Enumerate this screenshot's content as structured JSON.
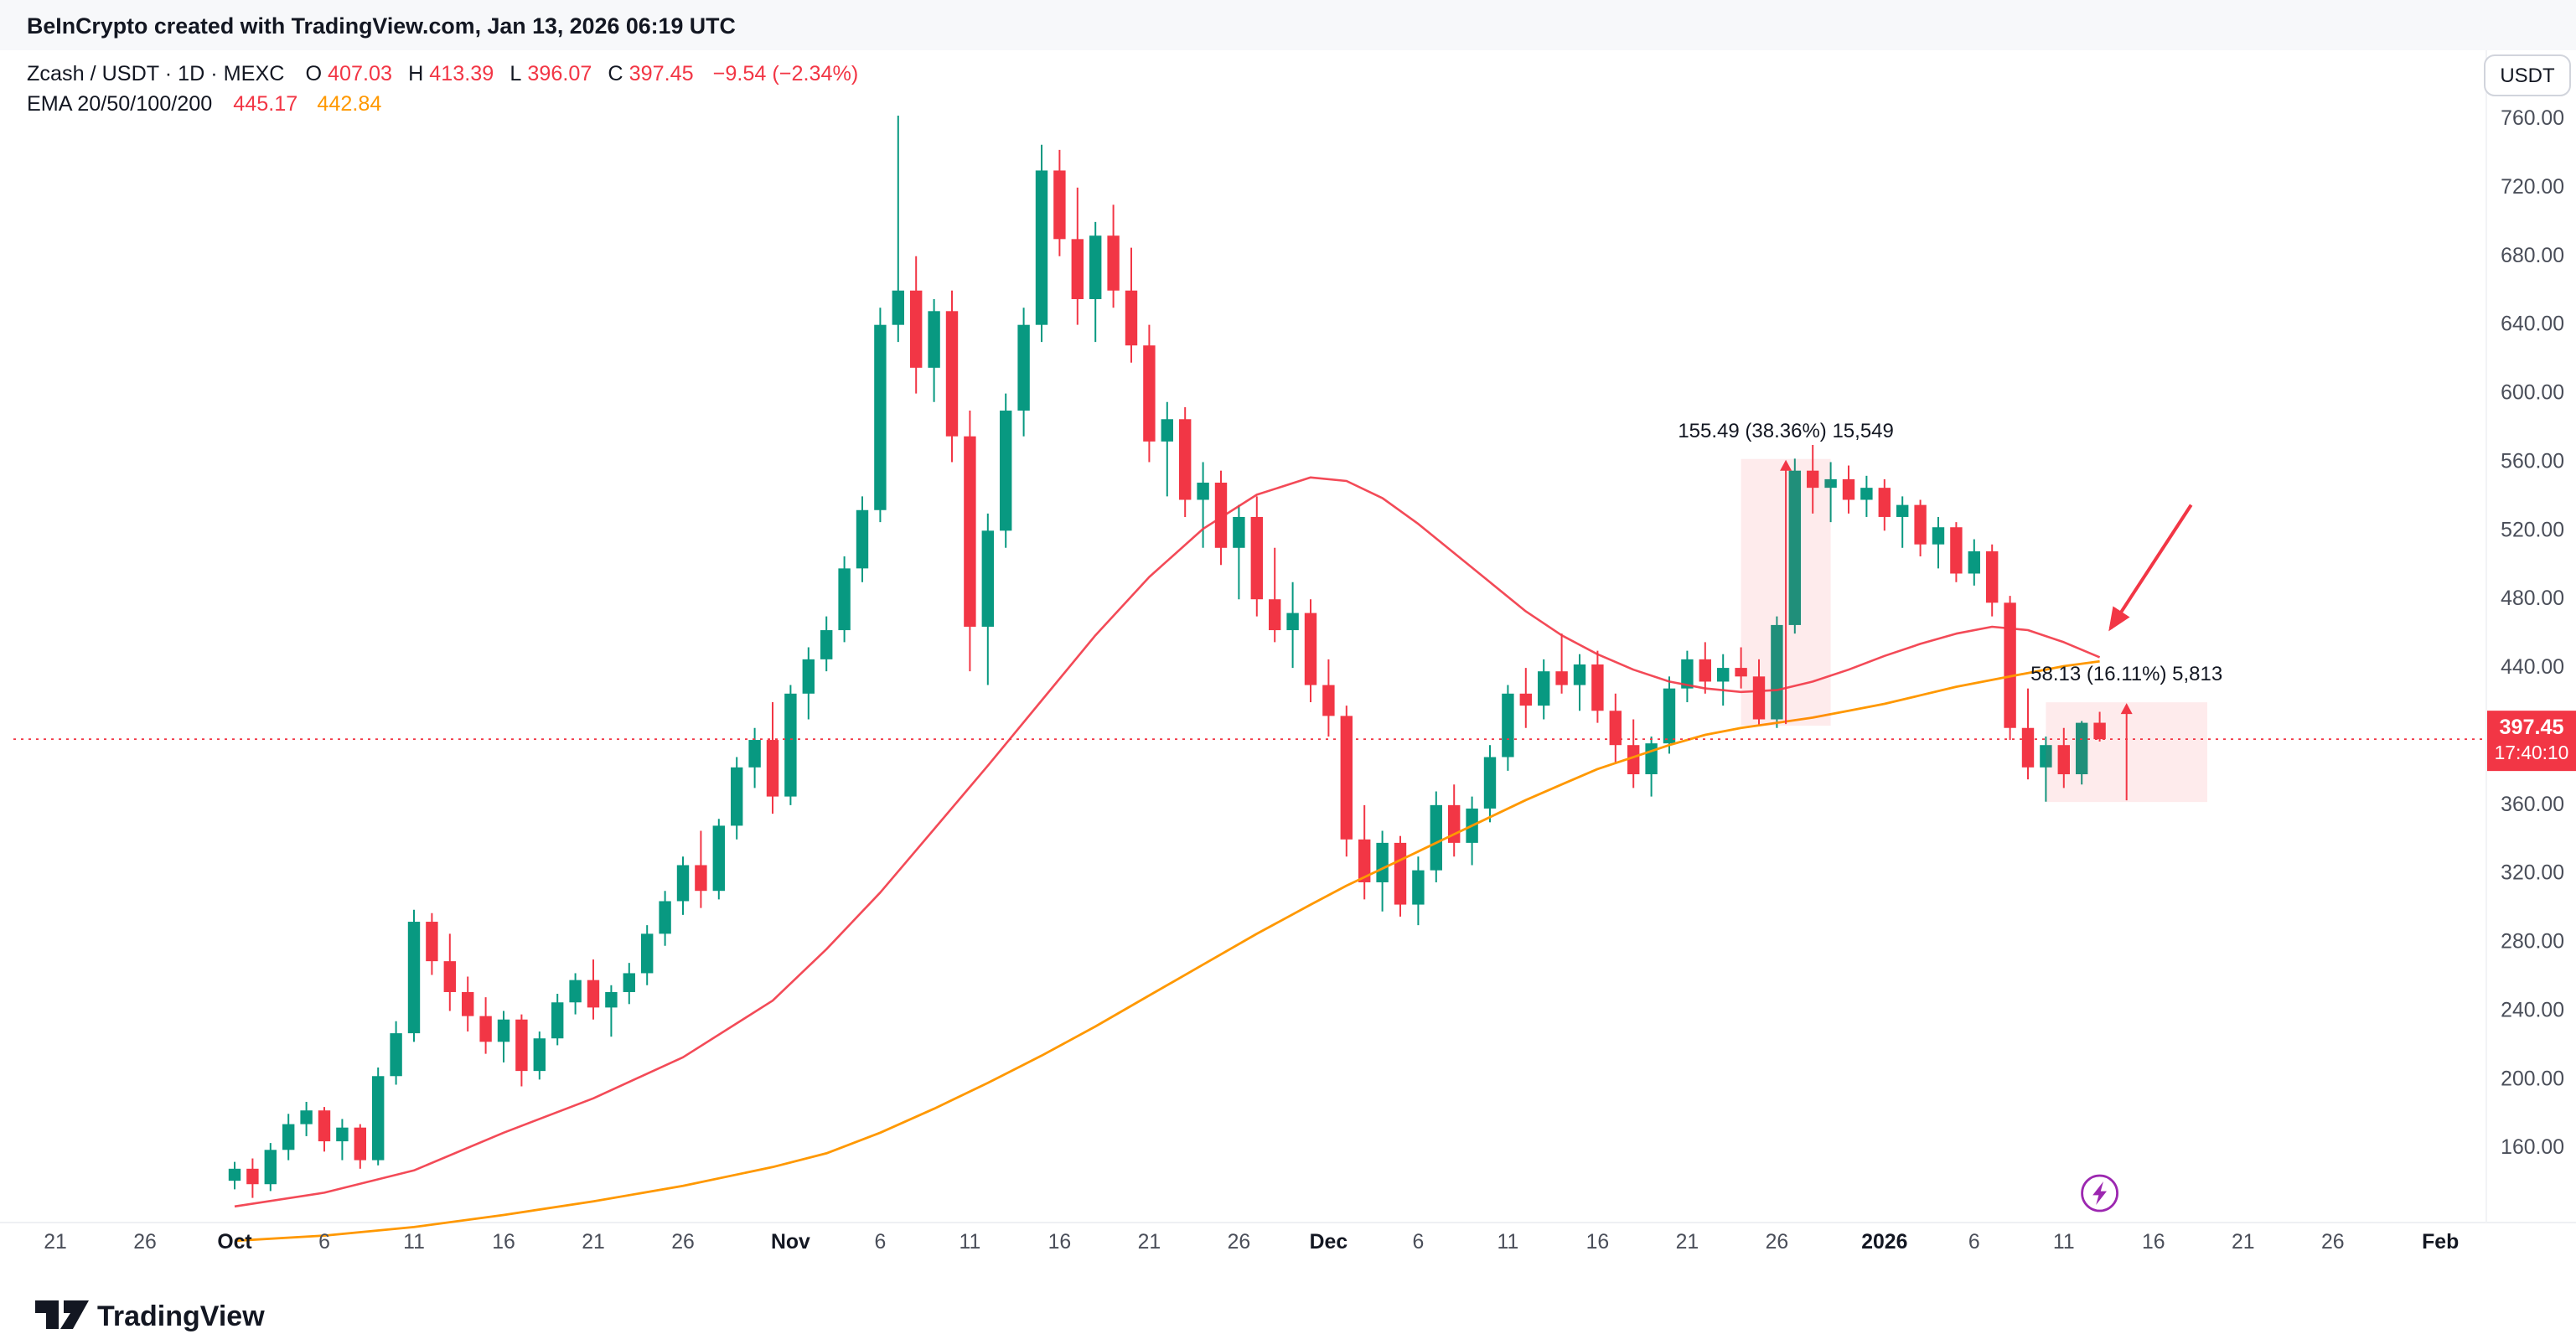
{
  "attribution": "BeInCrypto created with TradingView.com, Jan 13, 2026 06:19 UTC",
  "legend": {
    "symbol": "Zcash / USDT · 1D · MEXC",
    "ohlc": {
      "o_label": "O",
      "o": "407.03",
      "h_label": "H",
      "h": "413.39",
      "l_label": "L",
      "l": "396.07",
      "c_label": "C",
      "c": "397.45",
      "change": "−9.54 (−2.34%)"
    },
    "ema": {
      "label": "EMA 20/50/100/200",
      "red_value": "445.17",
      "orange_value": "442.84"
    }
  },
  "price_axis": {
    "currency_button": "USDT",
    "ticks": [
      "760.00",
      "720.00",
      "680.00",
      "640.00",
      "600.00",
      "560.00",
      "520.00",
      "480.00",
      "440.00",
      "400.00",
      "360.00",
      "320.00",
      "280.00",
      "240.00",
      "200.00",
      "160.00"
    ],
    "last_price_label": {
      "price": "397.45",
      "countdown": "17:40:10"
    }
  },
  "time_axis": {
    "labels": [
      {
        "t": "21",
        "i": -10,
        "strong": false
      },
      {
        "t": "26",
        "i": -5,
        "strong": false
      },
      {
        "t": "Oct",
        "i": 0,
        "strong": true
      },
      {
        "t": "6",
        "i": 5,
        "strong": false
      },
      {
        "t": "11",
        "i": 10,
        "strong": false
      },
      {
        "t": "16",
        "i": 15,
        "strong": false
      },
      {
        "t": "21",
        "i": 20,
        "strong": false
      },
      {
        "t": "26",
        "i": 25,
        "strong": false
      },
      {
        "t": "Nov",
        "i": 31,
        "strong": true
      },
      {
        "t": "6",
        "i": 36,
        "strong": false
      },
      {
        "t": "11",
        "i": 41,
        "strong": false
      },
      {
        "t": "16",
        "i": 46,
        "strong": false
      },
      {
        "t": "21",
        "i": 51,
        "strong": false
      },
      {
        "t": "26",
        "i": 56,
        "strong": false
      },
      {
        "t": "Dec",
        "i": 61,
        "strong": true
      },
      {
        "t": "6",
        "i": 66,
        "strong": false
      },
      {
        "t": "11",
        "i": 71,
        "strong": false
      },
      {
        "t": "16",
        "i": 76,
        "strong": false
      },
      {
        "t": "21",
        "i": 81,
        "strong": false
      },
      {
        "t": "26",
        "i": 86,
        "strong": false
      },
      {
        "t": "2026",
        "i": 92,
        "strong": true
      },
      {
        "t": "6",
        "i": 97,
        "strong": false
      },
      {
        "t": "11",
        "i": 102,
        "strong": false
      },
      {
        "t": "16",
        "i": 107,
        "strong": false
      },
      {
        "t": "21",
        "i": 112,
        "strong": false
      },
      {
        "t": "26",
        "i": 117,
        "strong": false
      },
      {
        "t": "Feb",
        "i": 123,
        "strong": true
      }
    ]
  },
  "footer": {
    "brand": "TradingView"
  },
  "colors": {
    "up": "#089981",
    "down": "#f23645",
    "ema_red": "#f23645",
    "ema_orange": "#ff9800",
    "last_price_bg": "#f23645",
    "accent_purple": "#9c27b0",
    "annotation_fill": "rgba(242,54,69,0.10)",
    "annotation_line": "#f23645",
    "topbar_bg": "#f7f8fa"
  },
  "chart_data": {
    "type": "candlestick",
    "title": "Zcash / USDT · 1D · MEXC",
    "ylabel": "USDT",
    "interval": "1D",
    "exchange": "MEXC",
    "last_price": 397.45,
    "y_axis": {
      "min": 160,
      "max": 760,
      "step": 40
    },
    "candles_format": [
      "date",
      "open",
      "high",
      "low",
      "close"
    ],
    "candles": [
      [
        "Oct 1",
        140,
        151,
        135,
        147
      ],
      [
        "Oct 2",
        147,
        153,
        130,
        138
      ],
      [
        "Oct 3",
        138,
        162,
        134,
        158
      ],
      [
        "Oct 4",
        158,
        179,
        152,
        173
      ],
      [
        "Oct 5",
        173,
        186,
        166,
        181
      ],
      [
        "Oct 6",
        181,
        183,
        157,
        163
      ],
      [
        "Oct 7",
        163,
        176,
        152,
        171
      ],
      [
        "Oct 8",
        171,
        173,
        147,
        152
      ],
      [
        "Oct 9",
        152,
        206,
        149,
        201
      ],
      [
        "Oct 10",
        201,
        233,
        196,
        226
      ],
      [
        "Oct 11",
        226,
        298,
        221,
        291
      ],
      [
        "Oct 12",
        291,
        296,
        260,
        268
      ],
      [
        "Oct 13",
        268,
        284,
        239,
        250
      ],
      [
        "Oct 14",
        250,
        259,
        227,
        236
      ],
      [
        "Oct 15",
        236,
        247,
        214,
        221
      ],
      [
        "Oct 16",
        221,
        239,
        209,
        234
      ],
      [
        "Oct 17",
        234,
        237,
        195,
        204
      ],
      [
        "Oct 18",
        204,
        227,
        199,
        223
      ],
      [
        "Oct 19",
        223,
        249,
        219,
        244
      ],
      [
        "Oct 20",
        244,
        261,
        237,
        257
      ],
      [
        "Oct 21",
        257,
        269,
        234,
        241
      ],
      [
        "Oct 22",
        241,
        254,
        224,
        250
      ],
      [
        "Oct 23",
        250,
        267,
        243,
        261
      ],
      [
        "Oct 24",
        261,
        289,
        254,
        284
      ],
      [
        "Oct 25",
        284,
        309,
        277,
        303
      ],
      [
        "Oct 26",
        303,
        329,
        295,
        324
      ],
      [
        "Oct 27",
        324,
        344,
        299,
        309
      ],
      [
        "Oct 28",
        309,
        351,
        304,
        347
      ],
      [
        "Oct 29",
        347,
        387,
        339,
        381
      ],
      [
        "Oct 30",
        381,
        404,
        369,
        397
      ],
      [
        "Oct 31",
        397,
        419,
        354,
        364
      ],
      [
        "Nov 1",
        364,
        429,
        359,
        424
      ],
      [
        "Nov 2",
        424,
        451,
        409,
        444
      ],
      [
        "Nov 3",
        444,
        469,
        437,
        461
      ],
      [
        "Nov 4",
        461,
        504,
        454,
        497
      ],
      [
        "Nov 5",
        497,
        539,
        489,
        531
      ],
      [
        "Nov 6",
        531,
        649,
        524,
        639
      ],
      [
        "Nov 7",
        639,
        761,
        629,
        659
      ],
      [
        "Nov 8",
        659,
        679,
        599,
        614
      ],
      [
        "Nov 9",
        614,
        654,
        594,
        647
      ],
      [
        "Nov 10",
        647,
        659,
        559,
        574
      ],
      [
        "Nov 11",
        574,
        589,
        437,
        463
      ],
      [
        "Nov 12",
        463,
        529,
        429,
        519
      ],
      [
        "Nov 13",
        519,
        599,
        509,
        589
      ],
      [
        "Nov 14",
        589,
        649,
        574,
        639
      ],
      [
        "Nov 15",
        639,
        744,
        629,
        729
      ],
      [
        "Nov 16",
        729,
        741,
        679,
        689
      ],
      [
        "Nov 17",
        689,
        719,
        639,
        654
      ],
      [
        "Nov 18",
        654,
        699,
        629,
        691
      ],
      [
        "Nov 19",
        691,
        709,
        649,
        659
      ],
      [
        "Nov 20",
        659,
        684,
        617,
        627
      ],
      [
        "Nov 21",
        627,
        639,
        559,
        571
      ],
      [
        "Nov 22",
        571,
        594,
        539,
        584
      ],
      [
        "Nov 23",
        584,
        591,
        527,
        537
      ],
      [
        "Nov 24",
        537,
        559,
        509,
        547
      ],
      [
        "Nov 25",
        547,
        554,
        499,
        509
      ],
      [
        "Nov 26",
        509,
        534,
        479,
        527
      ],
      [
        "Nov 27",
        527,
        539,
        469,
        479
      ],
      [
        "Nov 28",
        479,
        509,
        454,
        461
      ],
      [
        "Nov 29",
        461,
        489,
        439,
        471
      ],
      [
        "Nov 30",
        471,
        479,
        419,
        429
      ],
      [
        "Dec 1",
        429,
        444,
        399,
        411
      ],
      [
        "Dec 2",
        411,
        417,
        329,
        339
      ],
      [
        "Dec 3",
        339,
        359,
        304,
        314
      ],
      [
        "Dec 4",
        314,
        344,
        297,
        337
      ],
      [
        "Dec 5",
        337,
        341,
        294,
        301
      ],
      [
        "Dec 6",
        301,
        329,
        289,
        321
      ],
      [
        "Dec 7",
        321,
        367,
        314,
        359
      ],
      [
        "Dec 8",
        359,
        371,
        329,
        337
      ],
      [
        "Dec 9",
        337,
        364,
        324,
        357
      ],
      [
        "Dec 10",
        357,
        394,
        349,
        387
      ],
      [
        "Dec 11",
        387,
        429,
        379,
        424
      ],
      [
        "Dec 12",
        424,
        439,
        404,
        417
      ],
      [
        "Dec 13",
        417,
        444,
        409,
        437
      ],
      [
        "Dec 14",
        437,
        459,
        424,
        429
      ],
      [
        "Dec 15",
        429,
        447,
        414,
        441
      ],
      [
        "Dec 16",
        441,
        449,
        407,
        414
      ],
      [
        "Dec 17",
        414,
        424,
        384,
        394
      ],
      [
        "Dec 18",
        394,
        409,
        369,
        377
      ],
      [
        "Dec 19",
        377,
        399,
        364,
        395
      ],
      [
        "Dec 20",
        395,
        434,
        389,
        427
      ],
      [
        "Dec 21",
        427,
        449,
        419,
        444
      ],
      [
        "Dec 22",
        444,
        454,
        424,
        431
      ],
      [
        "Dec 23",
        431,
        447,
        417,
        439
      ],
      [
        "Dec 24",
        439,
        451,
        427,
        434
      ],
      [
        "Dec 25",
        434,
        444,
        405,
        409
      ],
      [
        "Dec 26",
        409,
        469,
        404,
        464
      ],
      [
        "Dec 27",
        464,
        561,
        459,
        554
      ],
      [
        "Dec 28",
        554,
        569,
        529,
        544
      ],
      [
        "Dec 29",
        544,
        559,
        524,
        549
      ],
      [
        "Dec 30",
        549,
        557,
        529,
        537
      ],
      [
        "Dec 31",
        537,
        551,
        527,
        544
      ],
      [
        "Jan 1",
        544,
        549,
        519,
        527
      ],
      [
        "Jan 2",
        527,
        539,
        509,
        534
      ],
      [
        "Jan 3",
        534,
        537,
        504,
        511
      ],
      [
        "Jan 4",
        511,
        527,
        497,
        521
      ],
      [
        "Jan 5",
        521,
        524,
        489,
        494
      ],
      [
        "Jan 6",
        494,
        514,
        487,
        507
      ],
      [
        "Jan 7",
        507,
        511,
        469,
        477
      ],
      [
        "Jan 8",
        477,
        481,
        397,
        404
      ],
      [
        "Jan 9",
        404,
        427,
        374,
        381
      ],
      [
        "Jan 10",
        381,
        399,
        361,
        394
      ],
      [
        "Jan 11",
        394,
        404,
        369,
        377
      ],
      [
        "Jan 12",
        377,
        408,
        371,
        406.99
      ],
      [
        "Jan 13",
        407.03,
        413.39,
        396.07,
        397.45
      ]
    ],
    "ema_red_points": [
      [
        0,
        125
      ],
      [
        5,
        133
      ],
      [
        10,
        146
      ],
      [
        15,
        168
      ],
      [
        20,
        188
      ],
      [
        25,
        212
      ],
      [
        30,
        245
      ],
      [
        33,
        275
      ],
      [
        36,
        308
      ],
      [
        39,
        345
      ],
      [
        42,
        382
      ],
      [
        45,
        420
      ],
      [
        48,
        458
      ],
      [
        51,
        492
      ],
      [
        54,
        520
      ],
      [
        57,
        540
      ],
      [
        60,
        550
      ],
      [
        62,
        548
      ],
      [
        64,
        538
      ],
      [
        66,
        523
      ],
      [
        68,
        506
      ],
      [
        70,
        489
      ],
      [
        72,
        472
      ],
      [
        74,
        458
      ],
      [
        76,
        447
      ],
      [
        78,
        438
      ],
      [
        80,
        431
      ],
      [
        82,
        427
      ],
      [
        84,
        425
      ],
      [
        86,
        426
      ],
      [
        88,
        431
      ],
      [
        90,
        438
      ],
      [
        92,
        446
      ],
      [
        94,
        453
      ],
      [
        96,
        459
      ],
      [
        98,
        463
      ],
      [
        100,
        461
      ],
      [
        102,
        454
      ],
      [
        104,
        445.17
      ]
    ],
    "ema_orange_points": [
      [
        0,
        105
      ],
      [
        5,
        108
      ],
      [
        10,
        113
      ],
      [
        15,
        120
      ],
      [
        20,
        128
      ],
      [
        25,
        137
      ],
      [
        30,
        148
      ],
      [
        33,
        156
      ],
      [
        36,
        168
      ],
      [
        39,
        182
      ],
      [
        42,
        197
      ],
      [
        45,
        213
      ],
      [
        48,
        230
      ],
      [
        51,
        248
      ],
      [
        54,
        266
      ],
      [
        57,
        284
      ],
      [
        60,
        301
      ],
      [
        62,
        312
      ],
      [
        64,
        322
      ],
      [
        66,
        332
      ],
      [
        68,
        342
      ],
      [
        70,
        352
      ],
      [
        72,
        362
      ],
      [
        74,
        371
      ],
      [
        76,
        380
      ],
      [
        78,
        387
      ],
      [
        80,
        394
      ],
      [
        82,
        400
      ],
      [
        84,
        404
      ],
      [
        86,
        407
      ],
      [
        88,
        410
      ],
      [
        90,
        414
      ],
      [
        92,
        418
      ],
      [
        94,
        423
      ],
      [
        96,
        428
      ],
      [
        98,
        432
      ],
      [
        100,
        436
      ],
      [
        102,
        440
      ],
      [
        104,
        442.84
      ]
    ],
    "annotations": [
      {
        "kind": "measure_range",
        "text": "155.49 (38.36%) 15,549",
        "i_from": 84,
        "i_to": 89,
        "price_from": 405.3,
        "price_to": 560.79
      },
      {
        "kind": "measure_range",
        "text": "58.13 (16.11%) 5,813",
        "i_from": 101,
        "i_to": 110,
        "price_from": 360.8,
        "price_to": 418.93
      },
      {
        "kind": "arrow",
        "i_from": 109.1,
        "price_from": 534,
        "i_to": 104.6,
        "price_to": 462
      },
      {
        "kind": "event_marker",
        "i": 104,
        "symbol": "lightning"
      }
    ]
  }
}
